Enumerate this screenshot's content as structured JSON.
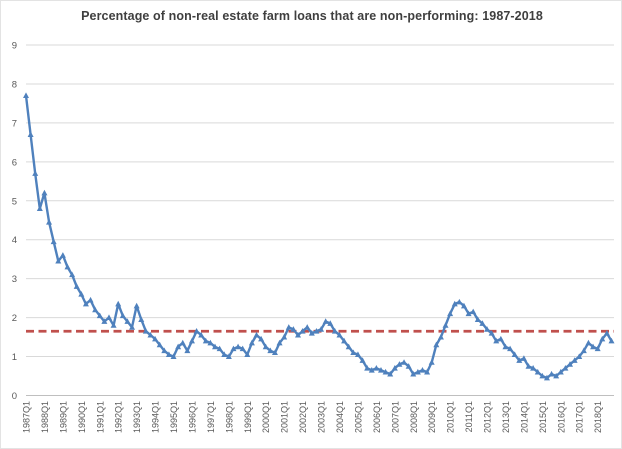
{
  "chart_data": {
    "type": "line",
    "title": "Percentage of non-real estate farm loans that are non-performing: 1987-2018",
    "xlabel": "",
    "ylabel": "",
    "ylim": [
      0,
      9
    ],
    "yticks": [
      0,
      1,
      2,
      3,
      4,
      5,
      6,
      7,
      8,
      9
    ],
    "grid": "horizontal",
    "legend": "none",
    "x_frequency": "quarterly",
    "x_tick_labels": [
      "1987Q1",
      "1988Q1",
      "1989Q1",
      "1990Q1",
      "1991Q1",
      "1992Q1",
      "1993Q1",
      "1994Q1",
      "1995Q1",
      "1996Q1",
      "1997Q1",
      "1998Q1",
      "1999Q1",
      "2000Q1",
      "2001Q1",
      "2002Q1",
      "2003Q1",
      "2004Q1",
      "2005Q1",
      "2006Q1",
      "2007Q1",
      "2008Q1",
      "2009Q1",
      "2010Q1",
      "2011Q1",
      "2012Q1",
      "2013Q1",
      "2014Q1",
      "2015Q1",
      "2016Q1",
      "2017Q1",
      "2018Q1"
    ],
    "series": [
      {
        "name": "non-performing-percentage",
        "type": "line",
        "color": "#4F81BD",
        "marker": "triangle-up",
        "values": [
          7.7,
          6.7,
          5.7,
          4.8,
          5.2,
          4.45,
          3.95,
          3.45,
          3.6,
          3.3,
          3.1,
          2.8,
          2.6,
          2.35,
          2.45,
          2.2,
          2.05,
          1.9,
          2.0,
          1.8,
          2.35,
          2.05,
          1.9,
          1.75,
          2.3,
          1.95,
          1.65,
          1.55,
          1.45,
          1.3,
          1.15,
          1.05,
          1.0,
          1.25,
          1.35,
          1.15,
          1.4,
          1.65,
          1.55,
          1.4,
          1.35,
          1.25,
          1.2,
          1.05,
          1.0,
          1.2,
          1.25,
          1.2,
          1.05,
          1.35,
          1.55,
          1.45,
          1.25,
          1.15,
          1.1,
          1.35,
          1.5,
          1.75,
          1.7,
          1.55,
          1.65,
          1.75,
          1.6,
          1.65,
          1.7,
          1.9,
          1.85,
          1.65,
          1.55,
          1.4,
          1.25,
          1.1,
          1.05,
          0.9,
          0.7,
          0.65,
          0.7,
          0.65,
          0.6,
          0.55,
          0.7,
          0.8,
          0.85,
          0.75,
          0.55,
          0.6,
          0.65,
          0.6,
          0.85,
          1.3,
          1.5,
          1.8,
          2.1,
          2.35,
          2.4,
          2.3,
          2.1,
          2.15,
          1.95,
          1.85,
          1.7,
          1.6,
          1.4,
          1.45,
          1.25,
          1.2,
          1.05,
          0.9,
          0.95,
          0.75,
          0.7,
          0.6,
          0.5,
          0.45,
          0.55,
          0.5,
          0.6,
          0.7,
          0.8,
          0.9,
          1.0,
          1.15,
          1.35,
          1.25,
          1.2,
          1.45,
          1.6,
          1.4
        ]
      },
      {
        "name": "average-reference-line",
        "type": "reference-line",
        "color": "#C0504D",
        "style": "dashed",
        "value": 1.65
      }
    ],
    "colors": {
      "line_blue": "#4F81BD",
      "dashed_red": "#C0504D",
      "gridline": "#D9D9D9",
      "axis_line": "#BFBFBF",
      "axis_text": "#595959",
      "title_text": "#3F3F3F",
      "background": "#FFFFFF"
    }
  }
}
